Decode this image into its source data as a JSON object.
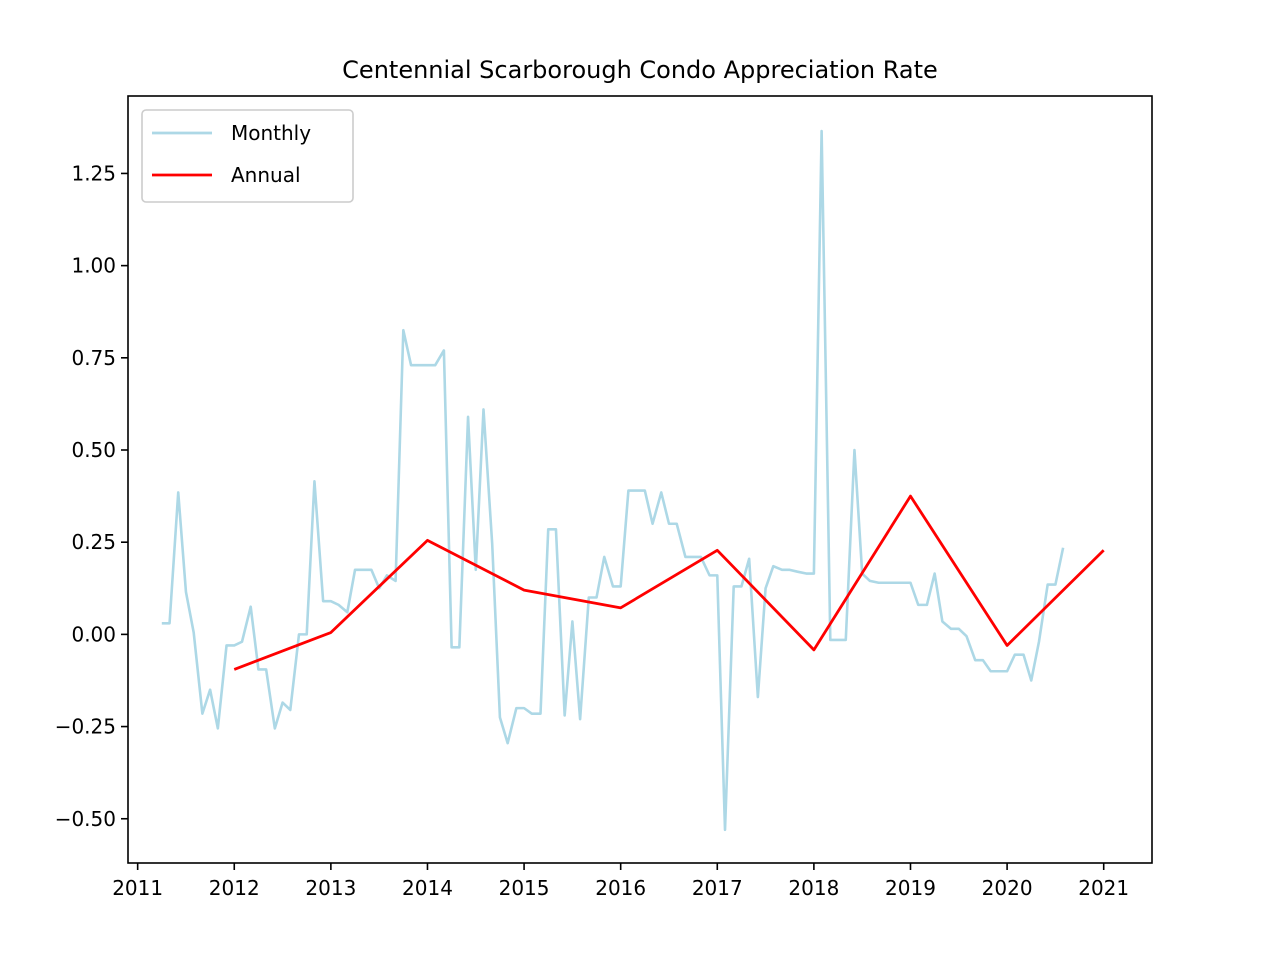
{
  "chart_data": {
    "type": "line",
    "title": "Centennial Scarborough Condo Appreciation Rate",
    "xlabel": "",
    "ylabel": "",
    "xlim": [
      2010.9,
      2021.5
    ],
    "ylim": [
      -0.62,
      1.46
    ],
    "x_ticks": [
      2011,
      2012,
      2013,
      2014,
      2015,
      2016,
      2017,
      2018,
      2019,
      2020,
      2021
    ],
    "y_ticks": [
      -0.5,
      -0.25,
      0.0,
      0.25,
      0.5,
      0.75,
      1.0,
      1.25
    ],
    "y_tick_labels": [
      "−0.50",
      "−0.25",
      "0.00",
      "0.25",
      "0.50",
      "0.75",
      "1.00",
      "1.25"
    ],
    "grid": false,
    "legend": "top-left",
    "series": [
      {
        "name": "Monthly",
        "color": "#add8e6",
        "x": [
          2011.25,
          2011.33,
          2011.42,
          2011.5,
          2011.58,
          2011.67,
          2011.75,
          2011.83,
          2011.92,
          2012.0,
          2012.08,
          2012.17,
          2012.25,
          2012.33,
          2012.42,
          2012.5,
          2012.58,
          2012.67,
          2012.75,
          2012.83,
          2012.92,
          2013.0,
          2013.08,
          2013.17,
          2013.25,
          2013.33,
          2013.42,
          2013.5,
          2013.58,
          2013.67,
          2013.75,
          2013.83,
          2013.92,
          2014.0,
          2014.08,
          2014.17,
          2014.25,
          2014.33,
          2014.42,
          2014.5,
          2014.58,
          2014.67,
          2014.75,
          2014.83,
          2014.92,
          2015.0,
          2015.08,
          2015.17,
          2015.25,
          2015.33,
          2015.42,
          2015.5,
          2015.58,
          2015.67,
          2015.75,
          2015.83,
          2015.92,
          2016.0,
          2016.08,
          2016.17,
          2016.25,
          2016.33,
          2016.42,
          2016.5,
          2016.58,
          2016.67,
          2016.75,
          2016.83,
          2016.92,
          2017.0,
          2017.08,
          2017.17,
          2017.25,
          2017.33,
          2017.42,
          2017.5,
          2017.58,
          2017.67,
          2017.75,
          2017.83,
          2017.92,
          2018.0,
          2018.08,
          2018.17,
          2018.25,
          2018.33,
          2018.42,
          2018.5,
          2018.58,
          2018.67,
          2018.75,
          2018.83,
          2018.92,
          2019.0,
          2019.08,
          2019.17,
          2019.25,
          2019.33,
          2019.42,
          2019.5,
          2019.58,
          2019.67,
          2019.75,
          2019.83,
          2019.92,
          2020.0,
          2020.08,
          2020.17,
          2020.25,
          2020.33,
          2020.42,
          2020.5,
          2020.58
        ],
        "y": [
          0.03,
          0.03,
          0.385,
          0.115,
          0.005,
          -0.215,
          -0.15,
          -0.255,
          -0.03,
          -0.03,
          -0.02,
          0.075,
          -0.095,
          -0.095,
          -0.255,
          -0.185,
          -0.205,
          0.0,
          0.0,
          0.415,
          0.09,
          0.09,
          0.08,
          0.06,
          0.175,
          0.175,
          0.175,
          0.125,
          0.16,
          0.145,
          0.825,
          0.73,
          0.73,
          0.73,
          0.73,
          0.77,
          -0.035,
          -0.035,
          0.59,
          0.175,
          0.61,
          0.245,
          -0.225,
          -0.295,
          -0.2,
          -0.2,
          -0.215,
          -0.215,
          0.285,
          0.285,
          -0.22,
          0.035,
          -0.23,
          0.1,
          0.1,
          0.21,
          0.13,
          0.13,
          0.39,
          0.39,
          0.39,
          0.3,
          0.385,
          0.3,
          0.3,
          0.21,
          0.21,
          0.21,
          0.16,
          0.16,
          -0.53,
          0.13,
          0.13,
          0.205,
          -0.17,
          0.125,
          0.185,
          0.175,
          0.175,
          0.17,
          0.165,
          0.165,
          1.365,
          -0.015,
          -0.015,
          -0.015,
          0.5,
          0.165,
          0.145,
          0.14,
          0.14,
          0.14,
          0.14,
          0.14,
          0.08,
          0.08,
          0.165,
          0.035,
          0.015,
          0.015,
          -0.005,
          -0.07,
          -0.07,
          -0.1,
          -0.1,
          -0.1,
          -0.055,
          -0.055,
          -0.125,
          -0.02,
          0.135,
          0.135,
          0.235
        ]
      },
      {
        "name": "Annual",
        "color": "#ff0000",
        "x": [
          2012,
          2013,
          2014,
          2015,
          2016,
          2017,
          2018,
          2019,
          2020,
          2021
        ],
        "y": [
          -0.095,
          0.005,
          0.255,
          0.12,
          0.072,
          0.228,
          -0.042,
          0.375,
          -0.03,
          0.228
        ]
      }
    ]
  }
}
